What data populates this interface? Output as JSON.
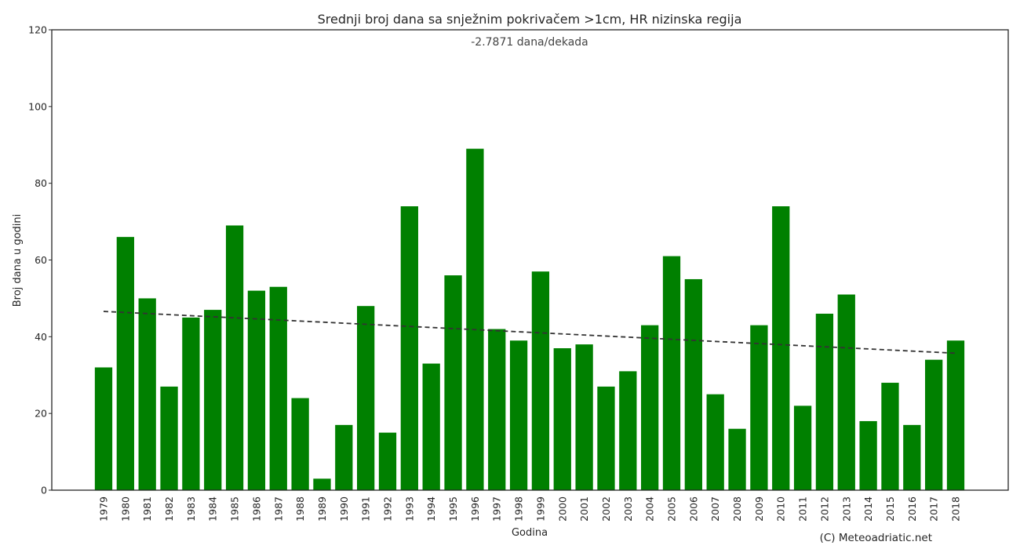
{
  "chart_data": {
    "type": "bar",
    "title": "Srednji broj dana sa snježnim pokrivačem >1cm, HR nizinska regija",
    "subtitle": "-2.7871 dana/dekada",
    "xlabel": "Godina",
    "ylabel": "Broj dana u godini",
    "categories": [
      "1979",
      "1980",
      "1981",
      "1982",
      "1983",
      "1984",
      "1985",
      "1986",
      "1987",
      "1988",
      "1989",
      "1990",
      "1991",
      "1992",
      "1993",
      "1994",
      "1995",
      "1996",
      "1997",
      "1998",
      "1999",
      "2000",
      "2001",
      "2002",
      "2003",
      "2004",
      "2005",
      "2006",
      "2007",
      "2008",
      "2009",
      "2010",
      "2011",
      "2012",
      "2013",
      "2014",
      "2015",
      "2016",
      "2017",
      "2018"
    ],
    "values": [
      32,
      66,
      50,
      27,
      45,
      47,
      69,
      52,
      53,
      24,
      3,
      17,
      48,
      15,
      74,
      33,
      56,
      89,
      42,
      39,
      57,
      37,
      38,
      27,
      31,
      43,
      61,
      55,
      25,
      16,
      43,
      74,
      22,
      46,
      51,
      18,
      28,
      17,
      34,
      39
    ],
    "ylim": [
      0,
      120
    ],
    "yticks": [
      0,
      20,
      40,
      60,
      80,
      100,
      120
    ],
    "trend": {
      "start": 46.6,
      "end": 35.7
    },
    "grid": false,
    "colors": {
      "bar": "#008000",
      "trend": "#333333",
      "frame": "#262626"
    },
    "credit": "(C) Meteoadriatic.net"
  }
}
